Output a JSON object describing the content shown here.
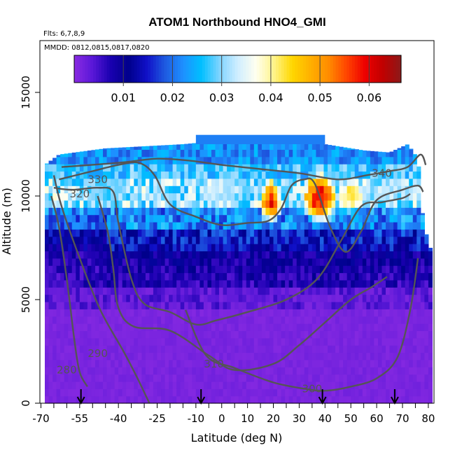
{
  "chart_data": {
    "type": "heatmap",
    "title": "ATOM1 Northbound HNO4_GMI",
    "flights_note": "Flts: 6,7,8,9",
    "dates_note": "MMDD: 0812,0815,0817,0820",
    "xlabel": "Latitude (deg N)",
    "ylabel": "Altitude (m)",
    "xlim": [
      -70,
      80
    ],
    "ylim": [
      0,
      17500
    ],
    "x_ticks": [
      -70,
      -55,
      -40,
      -25,
      -10,
      0,
      10,
      20,
      30,
      40,
      50,
      60,
      70,
      80
    ],
    "x_minor_step": 5,
    "y_ticks": [
      0,
      5000,
      10000,
      15000
    ],
    "colorbar": {
      "range": [
        0,
        0.0665
      ],
      "ticks": [
        0.01,
        0.02,
        0.03,
        0.04,
        0.05,
        0.06
      ],
      "tick_labels": [
        "0.01",
        "0.02",
        "0.03",
        "0.04",
        "0.05",
        "0.06"
      ],
      "colors": [
        "#8a2be2",
        "#5a18d8",
        "#1a00b0",
        "#00008b",
        "#1010c8",
        "#1e5ae0",
        "#1e90ff",
        "#00bfff",
        "#7fd4ff",
        "#cfeeff",
        "#fffff0",
        "#fff48a",
        "#ffd700",
        "#ffb000",
        "#ff8c00",
        "#ff4500",
        "#ee0000",
        "#c00000",
        "#8b1a1a"
      ]
    },
    "field": {
      "lat_range": [
        -68.5,
        80.5
      ],
      "cell_deg": 1.5,
      "cell_m": 350,
      "top_by_lat": [
        [
          -68.5,
          11500
        ],
        [
          -63,
          12000
        ],
        [
          -45,
          12300
        ],
        [
          -30,
          12400
        ],
        [
          -15,
          12500
        ],
        [
          10,
          12800
        ],
        [
          25,
          12700
        ],
        [
          35,
          12600
        ],
        [
          45,
          12400
        ],
        [
          55,
          12200
        ],
        [
          65,
          12100
        ],
        [
          72,
          12500
        ],
        [
          76,
          11800
        ],
        [
          78,
          8800
        ],
        [
          80.5,
          7500
        ]
      ],
      "cap": {
        "lat": [
          -10,
          40
        ],
        "alt": [
          12500,
          12950
        ],
        "value": 0.021
      },
      "anomalies": [
        {
          "lat": 19,
          "alt": 9700,
          "r_lat": 4.5,
          "r_alt": 1150,
          "value": 0.062
        },
        {
          "lat": 38,
          "alt": 9900,
          "r_lat": 7,
          "r_alt": 1300,
          "value": 0.066
        },
        {
          "lat": 50,
          "alt": 10000,
          "r_lat": 6,
          "r_alt": 900,
          "value": 0.046
        },
        {
          "lat": -1,
          "alt": 10200,
          "r_lat": 9,
          "r_alt": 700,
          "value": 0.036
        },
        {
          "lat": 66,
          "alt": 10300,
          "r_lat": 8,
          "r_alt": 800,
          "value": 0.034
        },
        {
          "lat": -45,
          "alt": 10200,
          "r_lat": 10,
          "r_alt": 900,
          "value": 0.031
        }
      ]
    },
    "contours": [
      {
        "level": 280,
        "points": [
          [
            -66,
            10000
          ],
          [
            -63,
            8500
          ],
          [
            -60,
            6000
          ],
          [
            -57,
            3000
          ],
          [
            -55,
            1500
          ],
          [
            -52,
            800
          ]
        ],
        "label_at": [
          -60,
          1600
        ]
      },
      {
        "level": 290,
        "points": [
          [
            -65,
            11000
          ],
          [
            -62,
            9500
          ],
          [
            -55,
            7000
          ],
          [
            -47,
            4500
          ],
          [
            -38,
            2500
          ],
          [
            -33,
            1300
          ],
          [
            -28,
            0
          ]
        ],
        "label_at": [
          -48,
          2400
        ]
      },
      {
        "level": 300,
        "points": [
          [
            -14,
            4500
          ],
          [
            -6,
            2300
          ],
          [
            5,
            1700
          ],
          [
            20,
            1000
          ],
          [
            32,
            700
          ],
          [
            40,
            600
          ],
          [
            50,
            800
          ],
          [
            60,
            1200
          ],
          [
            68,
            2200
          ],
          [
            73,
            4500
          ],
          [
            76,
            7000
          ]
        ],
        "label_at": [
          35,
          700
        ]
      },
      {
        "level": 310,
        "points": [
          [
            -48,
            10000
          ],
          [
            -44,
            8200
          ],
          [
            -42,
            6500
          ],
          [
            -40,
            4600
          ],
          [
            -34,
            3700
          ],
          [
            -20,
            3500
          ],
          [
            -5,
            2300
          ],
          [
            5,
            1600
          ],
          [
            20,
            1900
          ],
          [
            30,
            2800
          ],
          [
            40,
            3900
          ],
          [
            50,
            5000
          ],
          [
            58,
            5600
          ],
          [
            64,
            6100
          ]
        ],
        "label_at": [
          -3,
          1900
        ]
      },
      {
        "level": 320,
        "points": [
          [
            -65,
            10400
          ],
          [
            -58,
            10300
          ],
          [
            -48,
            10400
          ],
          [
            -42,
            10200
          ],
          [
            -40,
            8700
          ],
          [
            -35,
            6000
          ],
          [
            -30,
            4800
          ],
          [
            -20,
            4400
          ],
          [
            -10,
            3800
          ],
          [
            -2,
            4000
          ],
          [
            10,
            4400
          ],
          [
            25,
            5000
          ],
          [
            37,
            6000
          ],
          [
            46,
            7800
          ],
          [
            54,
            9500
          ],
          [
            62,
            9700
          ],
          [
            70,
            9900
          ],
          [
            73,
            10100
          ]
        ],
        "label_at": [
          -55,
          10100
        ]
      },
      {
        "level": 330,
        "points": [
          [
            -63,
            10800
          ],
          [
            -50,
            11200
          ],
          [
            -40,
            11500
          ],
          [
            -32,
            11600
          ],
          [
            -26,
            11000
          ],
          [
            -20,
            9600
          ],
          [
            -10,
            9000
          ],
          [
            0,
            8600
          ],
          [
            10,
            8700
          ],
          [
            18,
            8800
          ],
          [
            23,
            9400
          ],
          [
            27,
            10500
          ],
          [
            32,
            10800
          ],
          [
            36,
            10600
          ],
          [
            42,
            8500
          ],
          [
            48,
            7300
          ],
          [
            54,
            8300
          ],
          [
            60,
            9800
          ],
          [
            70,
            10300
          ],
          [
            76,
            10500
          ],
          [
            78,
            10200
          ]
        ],
        "label_at": [
          -48,
          10800
        ]
      },
      {
        "level": 340,
        "points": [
          [
            -62,
            11400
          ],
          [
            -40,
            11600
          ],
          [
            -25,
            11800
          ],
          [
            -12,
            11700
          ],
          [
            0,
            11500
          ],
          [
            15,
            11300
          ],
          [
            30,
            11100
          ],
          [
            45,
            10800
          ],
          [
            56,
            11000
          ],
          [
            65,
            11200
          ],
          [
            72,
            11400
          ],
          [
            77,
            12000
          ],
          [
            79,
            11500
          ]
        ],
        "label_at": [
          62,
          11100
        ]
      }
    ],
    "flight_markers_lat": [
      -54.5,
      -8,
      39,
      67
    ]
  }
}
